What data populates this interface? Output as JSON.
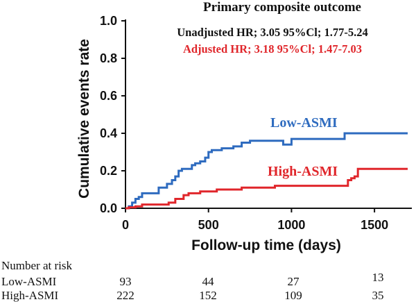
{
  "chart_data": {
    "type": "line",
    "title": "Primary composite outcome",
    "xlabel": "Follow-up time (days)",
    "ylabel": "Cumulative events rate",
    "xlim": [
      0,
      1700
    ],
    "ylim": [
      0,
      1.0
    ],
    "x_ticks": [
      "0",
      "500",
      "1000",
      "1500"
    ],
    "y_ticks": [
      "0.0",
      "0.2",
      "0.4",
      "0.6",
      "0.8",
      "1.0"
    ],
    "annotations": [
      {
        "text": "Unadjusted HR; 3.05 95%Cl; 1.77-5.24",
        "color": "#111111"
      },
      {
        "text": "Adjusted HR; 3.18 95%Cl; 1.47-7.03",
        "color": "#e0262b"
      }
    ],
    "series": [
      {
        "name": "Low-ASMI",
        "color": "#2e6bbf",
        "x": [
          0,
          20,
          40,
          60,
          80,
          100,
          150,
          200,
          250,
          280,
          300,
          320,
          340,
          400,
          420,
          450,
          480,
          500,
          520,
          580,
          650,
          700,
          750,
          900,
          950,
          1000,
          1320,
          1700
        ],
        "y": [
          0,
          0.01,
          0.03,
          0.05,
          0.06,
          0.08,
          0.08,
          0.11,
          0.13,
          0.15,
          0.17,
          0.2,
          0.21,
          0.23,
          0.24,
          0.25,
          0.27,
          0.3,
          0.31,
          0.32,
          0.33,
          0.35,
          0.36,
          0.36,
          0.34,
          0.37,
          0.4,
          0.4
        ]
      },
      {
        "name": "High-ASMI",
        "color": "#e0262b",
        "x": [
          0,
          20,
          60,
          100,
          200,
          260,
          300,
          350,
          380,
          450,
          550,
          600,
          700,
          800,
          900,
          1000,
          1100,
          1300,
          1340,
          1360,
          1380,
          1400,
          1700
        ],
        "y": [
          0,
          0.005,
          0.01,
          0.02,
          0.02,
          0.03,
          0.05,
          0.07,
          0.08,
          0.09,
          0.1,
          0.1,
          0.11,
          0.11,
          0.12,
          0.12,
          0.12,
          0.12,
          0.15,
          0.16,
          0.17,
          0.21,
          0.21
        ]
      }
    ]
  },
  "risk_table": {
    "heading": "Number at risk",
    "rows": [
      {
        "label": "Low-ASMI",
        "values": [
          "93",
          "44",
          "27",
          "13"
        ]
      },
      {
        "label": "High-ASMI",
        "values": [
          "222",
          "152",
          "109",
          "35"
        ]
      }
    ]
  }
}
